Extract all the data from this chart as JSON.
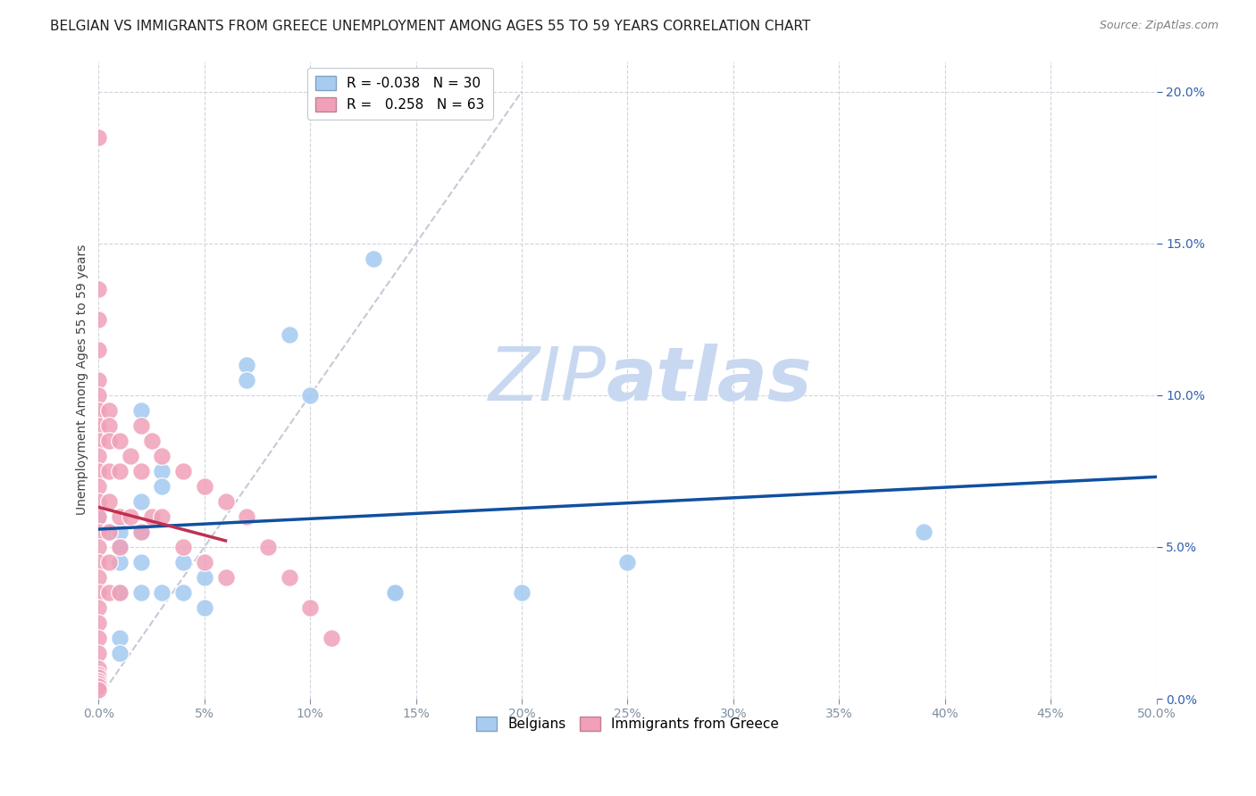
{
  "title": "BELGIAN VS IMMIGRANTS FROM GREECE UNEMPLOYMENT AMONG AGES 55 TO 59 YEARS CORRELATION CHART",
  "source": "Source: ZipAtlas.com",
  "ylabel": "Unemployment Among Ages 55 to 59 years",
  "xlim": [
    0,
    0.5
  ],
  "ylim": [
    0,
    0.21
  ],
  "xticks": [
    0.0,
    0.05,
    0.1,
    0.15,
    0.2,
    0.25,
    0.3,
    0.35,
    0.4,
    0.45,
    0.5
  ],
  "yticks": [
    0.0,
    0.05,
    0.1,
    0.15,
    0.2
  ],
  "blue_color": "#A8CCF0",
  "pink_color": "#F0A0B8",
  "blue_trend_color": "#1050A0",
  "pink_trend_color": "#C03050",
  "diag_color": "#C8C8D8",
  "legend_R_blue": "-0.038",
  "legend_N_blue": "30",
  "legend_R_pink": "0.258",
  "legend_N_pink": "63",
  "belgians_x": [
    0.0,
    0.005,
    0.01,
    0.01,
    0.01,
    0.01,
    0.01,
    0.01,
    0.02,
    0.02,
    0.02,
    0.02,
    0.02,
    0.03,
    0.03,
    0.03,
    0.04,
    0.04,
    0.05,
    0.05,
    0.07,
    0.07,
    0.09,
    0.1,
    0.13,
    0.14,
    0.14,
    0.2,
    0.25,
    0.39
  ],
  "belgians_y": [
    0.06,
    0.055,
    0.055,
    0.05,
    0.045,
    0.035,
    0.02,
    0.015,
    0.095,
    0.065,
    0.055,
    0.045,
    0.035,
    0.075,
    0.07,
    0.035,
    0.045,
    0.035,
    0.04,
    0.03,
    0.11,
    0.105,
    0.12,
    0.1,
    0.145,
    0.035,
    0.035,
    0.035,
    0.045,
    0.055
  ],
  "greece_x": [
    0.0,
    0.0,
    0.0,
    0.0,
    0.0,
    0.0,
    0.0,
    0.0,
    0.0,
    0.0,
    0.0,
    0.0,
    0.0,
    0.0,
    0.0,
    0.0,
    0.0,
    0.0,
    0.0,
    0.0,
    0.0,
    0.0,
    0.0,
    0.0,
    0.0,
    0.0,
    0.0,
    0.0,
    0.0,
    0.0,
    0.005,
    0.005,
    0.005,
    0.005,
    0.005,
    0.005,
    0.005,
    0.005,
    0.01,
    0.01,
    0.01,
    0.01,
    0.01,
    0.015,
    0.015,
    0.02,
    0.02,
    0.02,
    0.025,
    0.025,
    0.03,
    0.03,
    0.04,
    0.04,
    0.05,
    0.05,
    0.06,
    0.06,
    0.07,
    0.08,
    0.09,
    0.1,
    0.11
  ],
  "greece_y": [
    0.185,
    0.135,
    0.125,
    0.115,
    0.105,
    0.1,
    0.095,
    0.09,
    0.085,
    0.08,
    0.075,
    0.07,
    0.065,
    0.06,
    0.055,
    0.05,
    0.045,
    0.04,
    0.035,
    0.03,
    0.025,
    0.02,
    0.015,
    0.01,
    0.008,
    0.007,
    0.006,
    0.005,
    0.004,
    0.003,
    0.095,
    0.09,
    0.085,
    0.075,
    0.065,
    0.055,
    0.045,
    0.035,
    0.085,
    0.075,
    0.06,
    0.05,
    0.035,
    0.08,
    0.06,
    0.09,
    0.075,
    0.055,
    0.085,
    0.06,
    0.08,
    0.06,
    0.075,
    0.05,
    0.07,
    0.045,
    0.065,
    0.04,
    0.06,
    0.05,
    0.04,
    0.03,
    0.02
  ],
  "background_color": "#FFFFFF",
  "watermark_zip": "ZIP",
  "watermark_atlas": "atlas",
  "watermark_color": "#C8D8F0",
  "watermark_fontsize": 60,
  "title_fontsize": 11,
  "source_fontsize": 9,
  "axis_label_fontsize": 10,
  "tick_fontsize": 10,
  "legend_fontsize": 11
}
